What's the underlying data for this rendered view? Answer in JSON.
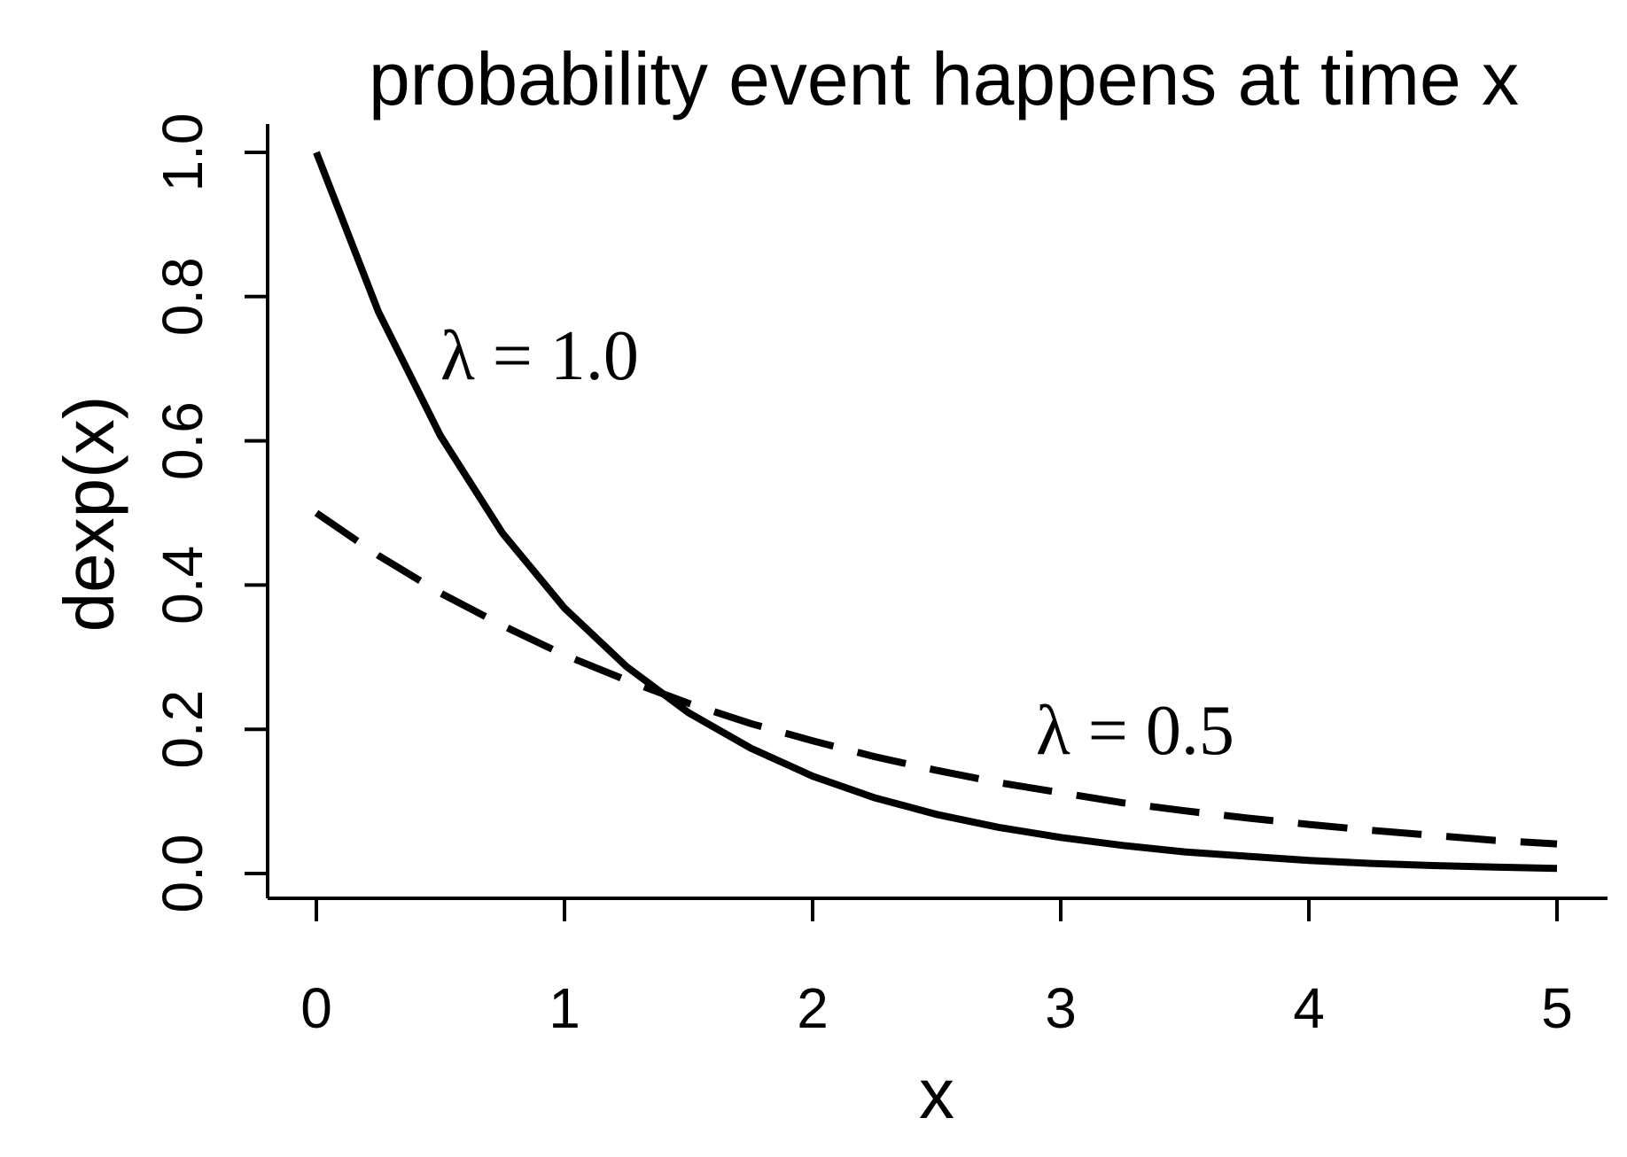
{
  "chart_data": {
    "type": "line",
    "title": "probability event happens at time x",
    "xlabel": "x",
    "ylabel": "dexp(x)",
    "xlim": [
      0,
      5
    ],
    "ylim": [
      0,
      1
    ],
    "xticks": [
      0,
      1,
      2,
      3,
      4,
      5
    ],
    "xtick_labels": [
      "0",
      "1",
      "2",
      "3",
      "4",
      "5"
    ],
    "yticks": [
      0,
      0.2,
      0.4,
      0.6,
      0.8,
      1.0
    ],
    "ytick_labels": [
      "0.0",
      "0.2",
      "0.4",
      "0.6",
      "0.8",
      "1.0"
    ],
    "grid": false,
    "series": [
      {
        "style": "solid",
        "x": [
          0,
          0.25,
          0.5,
          0.75,
          1,
          1.25,
          1.5,
          1.75,
          2,
          2.25,
          2.5,
          2.75,
          3,
          3.25,
          3.5,
          3.75,
          4,
          4.25,
          4.5,
          4.75,
          5
        ],
        "y": [
          1.0,
          0.779,
          0.607,
          0.472,
          0.368,
          0.287,
          0.223,
          0.174,
          0.135,
          0.105,
          0.082,
          0.064,
          0.05,
          0.039,
          0.03,
          0.024,
          0.018,
          0.014,
          0.011,
          0.009,
          0.007
        ]
      },
      {
        "style": "dashed",
        "x": [
          0,
          0.25,
          0.5,
          0.75,
          1,
          1.25,
          1.5,
          1.75,
          2,
          2.25,
          2.5,
          2.75,
          3,
          3.25,
          3.5,
          3.75,
          4,
          4.25,
          4.5,
          4.75,
          5
        ],
        "y": [
          0.5,
          0.441,
          0.389,
          0.344,
          0.303,
          0.268,
          0.236,
          0.208,
          0.184,
          0.162,
          0.143,
          0.126,
          0.112,
          0.098,
          0.087,
          0.077,
          0.068,
          0.06,
          0.053,
          0.046,
          0.041
        ]
      }
    ],
    "annotations": [
      {
        "text": "λ = 1.0",
        "x": 0.5,
        "y": 0.72
      },
      {
        "text": "λ = 0.5",
        "x": 2.9,
        "y": 0.2
      }
    ]
  }
}
